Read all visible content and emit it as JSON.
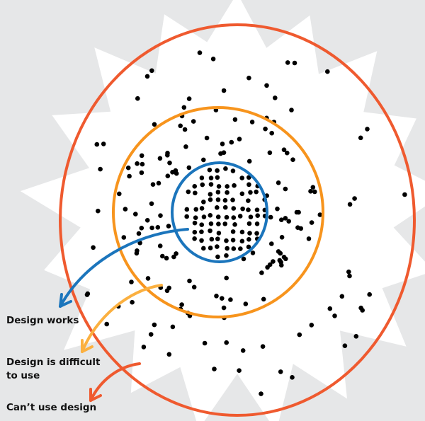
{
  "labels": {
    "works": "Design works",
    "difficult": "Design is difficult to use",
    "cant_use": "Can’t use design"
  },
  "colors": {
    "background": "#e6e7e8",
    "burst": "#ffffff",
    "outer_ring": "#ef5a2f",
    "middle_ring": "#f7941d",
    "inner_ring": "#1b75bc",
    "difficult_arrow": "#fbb040",
    "dots": "#000000"
  }
}
